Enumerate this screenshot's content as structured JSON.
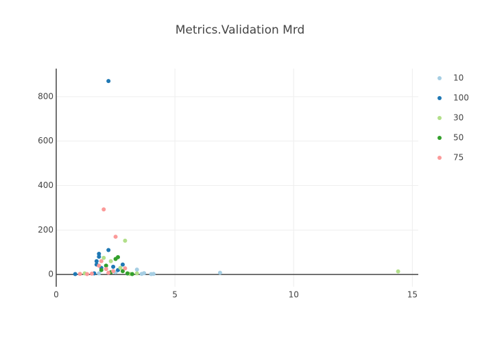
{
  "chart_data": {
    "type": "scatter",
    "title": "Metrics.Validation Mrd",
    "xlim": [
      0,
      15.25
    ],
    "xticks": [
      0,
      5,
      10,
      15
    ],
    "ylim": [
      -55,
      926
    ],
    "yticks": [
      0,
      200,
      400,
      600,
      800
    ],
    "grid": true,
    "legend": "right",
    "series": [
      {
        "name": "10",
        "color": "#a6cee3",
        "x": [
          6.9,
          3.4,
          4.1,
          3.6,
          1.8,
          2.5,
          3.0,
          4.0,
          3.7
        ],
        "y": [
          8,
          22,
          3,
          3,
          5,
          10,
          4,
          2,
          6
        ]
      },
      {
        "name": "100",
        "color": "#1f78b4",
        "x": [
          2.2,
          2.2,
          1.8,
          1.7,
          1.7,
          2.8,
          0.8,
          1.9,
          2.4,
          1.6,
          2.6,
          1.8
        ],
        "y": [
          870,
          110,
          93,
          60,
          45,
          45,
          2,
          30,
          35,
          5,
          20,
          80
        ]
      },
      {
        "name": "30",
        "color": "#b2df8a",
        "x": [
          14.4,
          2.9,
          2.3,
          2.0,
          3.4,
          2.7,
          1.2,
          3.1
        ],
        "y": [
          14,
          152,
          60,
          75,
          5,
          30,
          5,
          3
        ]
      },
      {
        "name": "50",
        "color": "#33a02c",
        "x": [
          2.6,
          2.5,
          2.1,
          3.2,
          3.0,
          2.8,
          1.9,
          2.3
        ],
        "y": [
          78,
          70,
          40,
          2,
          5,
          15,
          20,
          10
        ]
      },
      {
        "name": "75",
        "color": "#fb9a99",
        "x": [
          2.0,
          2.5,
          1.9,
          2.1,
          2.9,
          1.0,
          1.3,
          2.4,
          1.8,
          2.2,
          1.5
        ],
        "y": [
          293,
          170,
          60,
          25,
          28,
          3,
          2,
          15,
          40,
          8,
          4
        ]
      }
    ]
  }
}
